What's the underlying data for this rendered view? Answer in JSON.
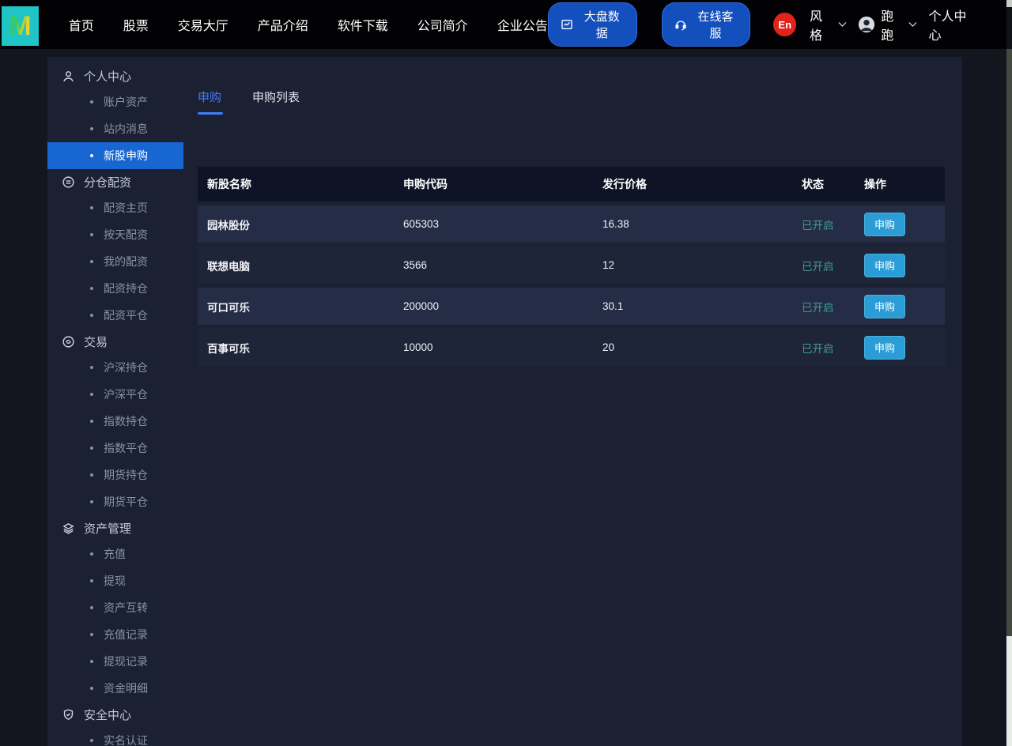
{
  "brand": {
    "logo_letter": "M"
  },
  "topnav": {
    "links": [
      "首页",
      "股票",
      "交易大厅",
      "产品介绍",
      "软件下载",
      "公司简介",
      "企业公告"
    ],
    "market_data_button": "大盘数据",
    "online_service_button": "在线客服",
    "lang_badge": "En",
    "style_dropdown": "风格",
    "username": "跑跑",
    "personal_center": "个人中心"
  },
  "sidebar": {
    "sections": [
      {
        "label": "个人中心",
        "icon": "user-icon",
        "items": [
          {
            "label": "账户资产",
            "active": false
          },
          {
            "label": "站内消息",
            "active": false
          },
          {
            "label": "新股申购",
            "active": true
          }
        ]
      },
      {
        "label": "分仓配资",
        "icon": "allocation-icon",
        "items": [
          {
            "label": "配资主页",
            "active": false
          },
          {
            "label": "按天配资",
            "active": false
          },
          {
            "label": "我的配资",
            "active": false
          },
          {
            "label": "配资持仓",
            "active": false
          },
          {
            "label": "配资平仓",
            "active": false
          }
        ]
      },
      {
        "label": "交易",
        "icon": "trade-icon",
        "items": [
          {
            "label": "沪深持仓",
            "active": false
          },
          {
            "label": "沪深平仓",
            "active": false
          },
          {
            "label": "指数持仓",
            "active": false
          },
          {
            "label": "指数平仓",
            "active": false
          },
          {
            "label": "期货持仓",
            "active": false
          },
          {
            "label": "期货平仓",
            "active": false
          }
        ]
      },
      {
        "label": "资产管理",
        "icon": "layers-icon",
        "items": [
          {
            "label": "充值",
            "active": false
          },
          {
            "label": "提现",
            "active": false
          },
          {
            "label": "资产互转",
            "active": false
          },
          {
            "label": "充值记录",
            "active": false
          },
          {
            "label": "提现记录",
            "active": false
          },
          {
            "label": "资金明细",
            "active": false
          }
        ]
      },
      {
        "label": "安全中心",
        "icon": "shield-icon",
        "items": [
          {
            "label": "实名认证",
            "active": false
          }
        ]
      }
    ]
  },
  "main": {
    "tabs": [
      {
        "label": "申购",
        "active": true
      },
      {
        "label": "申购列表",
        "active": false
      }
    ],
    "table": {
      "headers": [
        "新股名称",
        "申购代码",
        "发行价格",
        "状态",
        "操作"
      ],
      "rows": [
        {
          "name": "园林股份",
          "code": "605303",
          "price": "16.38",
          "status": "已开启",
          "action": "申购"
        },
        {
          "name": "联想电脑",
          "code": "3566",
          "price": "12",
          "status": "已开启",
          "action": "申购"
        },
        {
          "name": "可口可乐",
          "code": "200000",
          "price": "30.1",
          "status": "已开启",
          "action": "申购"
        },
        {
          "name": "百事可乐",
          "code": "10000",
          "price": "20",
          "status": "已开启",
          "action": "申购"
        }
      ]
    }
  },
  "colors": {
    "navbar_bg": "#020204",
    "logo_teal": "#1ec4c6",
    "nav_pill_blue": "#144fbe",
    "lang_badge_red": "#e2231a",
    "panel_bg": "#1b2133",
    "active_item_blue": "#1866d2",
    "tab_active_blue": "#3e7efb",
    "table_header_bg": "#0e1425",
    "row_bg_odd": "#252c46",
    "row_bg_even": "#1f2539",
    "status_green": "#3e9c8e",
    "action_button_cyan": "#2b9dd6"
  }
}
